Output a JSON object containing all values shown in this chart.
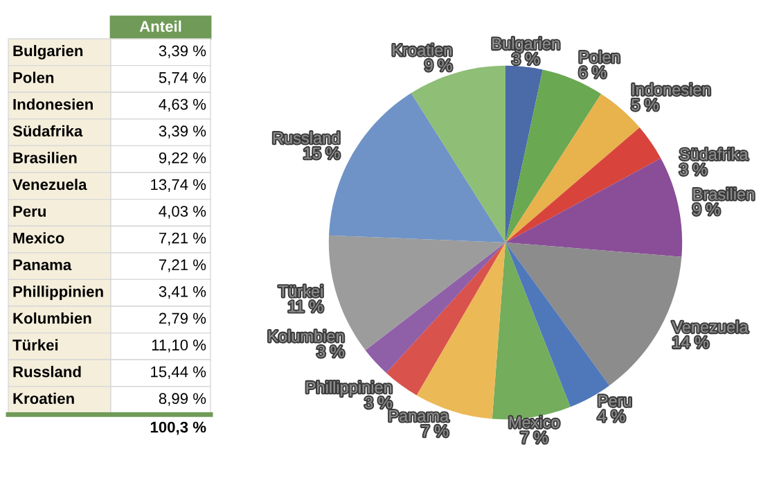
{
  "chart_data": {
    "type": "pie",
    "categories": [
      "Bulgarien",
      "Polen",
      "Indonesien",
      "Südafrika",
      "Brasilien",
      "Venezuela",
      "Peru",
      "Mexico",
      "Panama",
      "Phillippinien",
      "Kolumbien",
      "Türkei",
      "Russland",
      "Kroatien"
    ],
    "values": [
      3.39,
      5.74,
      4.63,
      3.39,
      9.22,
      13.74,
      4.03,
      7.21,
      7.21,
      3.41,
      2.79,
      11.1,
      15.44,
      8.99
    ],
    "colors": [
      "#4a6aa8",
      "#6aa852",
      "#e8b24c",
      "#d8443c",
      "#8a4d98",
      "#8c8c8c",
      "#4f78bb",
      "#74ad5c",
      "#ecb957",
      "#d9524c",
      "#8f5fa8",
      "#9c9c9c",
      "#6f93c6",
      "#8fbe77"
    ],
    "value_labels": [
      "3 %",
      "6 %",
      "5 %",
      "3 %",
      "9 %",
      "14 %",
      "4 %",
      "7 %",
      "7 %",
      "3 %",
      "3 %",
      "11 %",
      "15 %",
      "9 %"
    ],
    "annotations": [
      "Anteil",
      "3,39 %",
      "5,74 %",
      "4,63 %",
      "3,39 %",
      "9,22 %",
      "13,74 %",
      "4,03 %",
      "7,21 %",
      "7,21 %",
      "3,41 %",
      "2,79 %",
      "11,10 %",
      "15,44 %",
      "8,99 %",
      "100,3 %"
    ]
  }
}
